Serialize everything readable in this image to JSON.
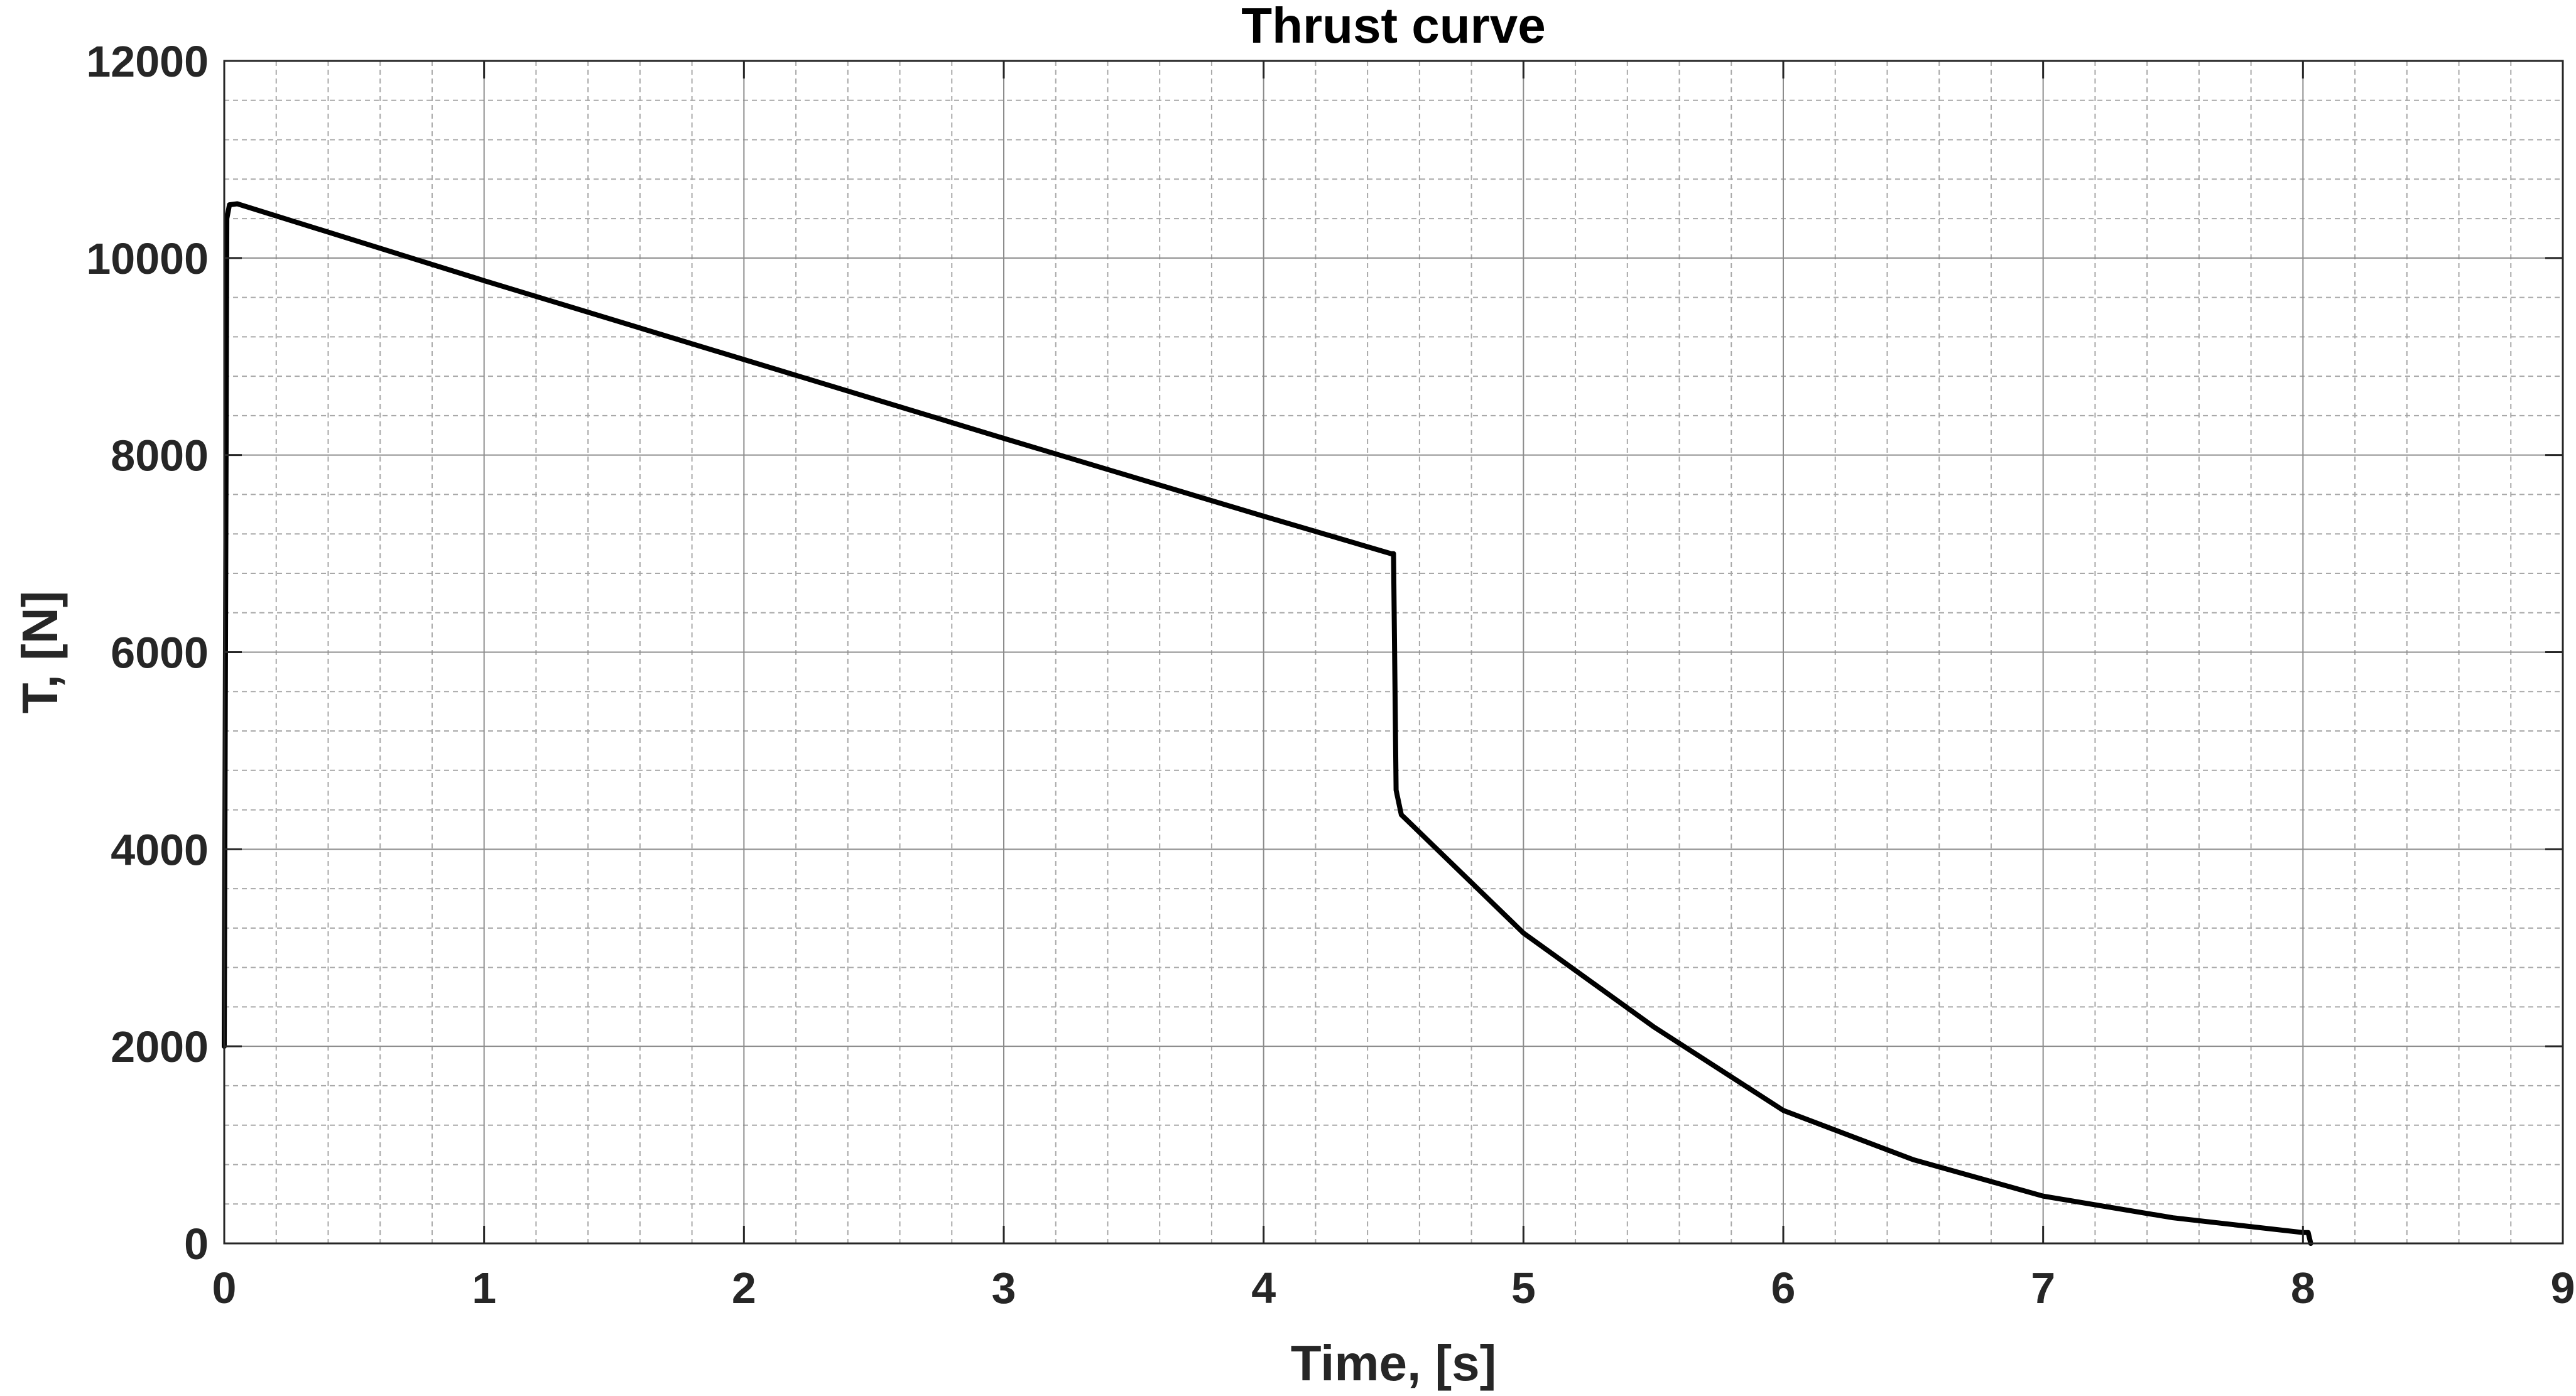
{
  "chart_data": {
    "type": "line",
    "title": "Thrust curve",
    "xlabel": "Time, [s]",
    "ylabel": "T, [N]",
    "xlim": [
      0,
      9
    ],
    "ylim": [
      0,
      12000
    ],
    "xticks": [
      "0",
      "1",
      "2",
      "3",
      "4",
      "5",
      "6",
      "7",
      "8",
      "9"
    ],
    "yticks": [
      "0",
      "2000",
      "4000",
      "6000",
      "8000",
      "10000",
      "12000"
    ],
    "grid": true,
    "minor_grid": true,
    "legend": "none",
    "series": [
      {
        "color": "#000000",
        "x": [
          0,
          0.01,
          0.02,
          0.05,
          1,
          2,
          3,
          4,
          4.49,
          4.5,
          4.51,
          4.53,
          4.55,
          5,
          5.5,
          6,
          6.5,
          7,
          7.5,
          8,
          8.02,
          8.03
        ],
        "y": [
          2000,
          10400,
          10540,
          10550,
          9770,
          8970,
          8170,
          7380,
          7000,
          7000,
          4600,
          4350,
          4300,
          3150,
          2200,
          1350,
          850,
          480,
          260,
          110,
          110,
          0
        ]
      }
    ]
  }
}
